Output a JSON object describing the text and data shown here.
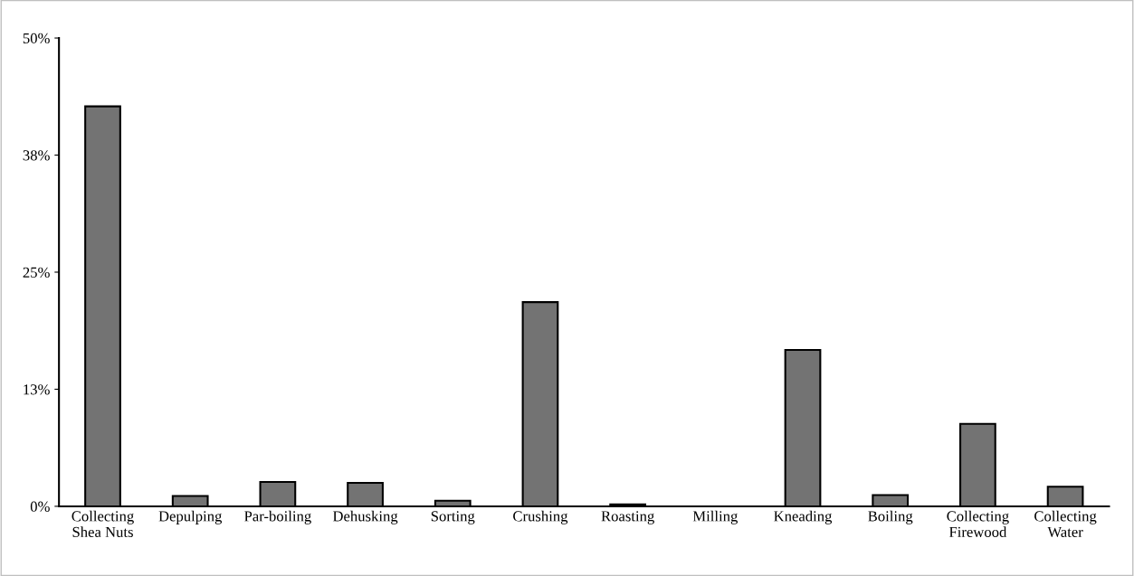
{
  "chart_data": {
    "type": "bar",
    "categories": [
      "Collecting\nShea Nuts",
      "Depulping",
      "Par-boiling",
      "Dehusking",
      "Sorting",
      "Crushing",
      "Roasting",
      "Milling",
      "Kneading",
      "Boiling",
      "Collecting\nFirewood",
      "Collecting\nWater"
    ],
    "values": [
      42.7,
      1.1,
      2.6,
      2.5,
      0.6,
      21.8,
      0.2,
      0,
      16.7,
      1.2,
      8.8,
      2.1
    ],
    "color": "#737373",
    "ylim": [
      0,
      50
    ],
    "yticks": [
      {
        "value": 0,
        "label": "0%"
      },
      {
        "value": 12.5,
        "label": "13%"
      },
      {
        "value": 25,
        "label": "25%"
      },
      {
        "value": 37.5,
        "label": "38%"
      },
      {
        "value": 50,
        "label": "50%"
      }
    ],
    "grid": false,
    "legend": false
  }
}
